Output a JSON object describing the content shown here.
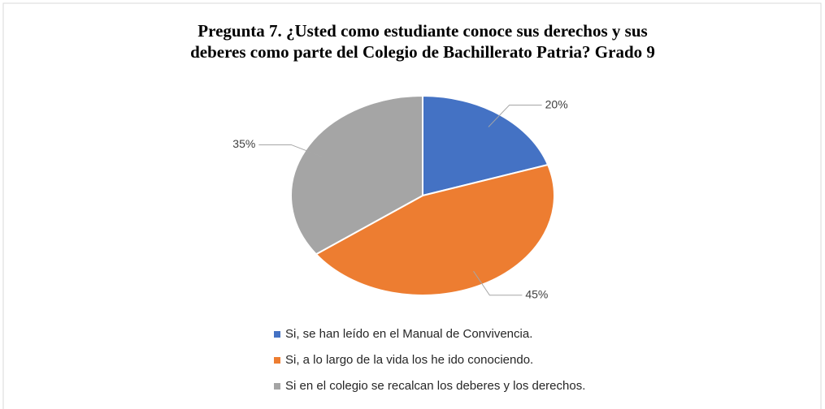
{
  "chart_data": {
    "type": "pie",
    "title": [
      "Pregunta 7. ¿Usted como estudiante conoce sus derechos y sus",
      "deberes como parte del Colegio de Bachillerato Patria? Grado 9"
    ],
    "categories": [
      "Si,  se han leído  en el  Manual de Convivencia.",
      "Si, a lo largo de la vida los he ido conociendo.",
      "Si en el colegio se recalcan los deberes y los derechos."
    ],
    "values": [
      20,
      45,
      35
    ],
    "value_labels": [
      "20%",
      "45%",
      "35%"
    ],
    "colors": [
      "#4472c4",
      "#ed7d31",
      "#a5a5a5"
    ],
    "legend": "bottom"
  }
}
